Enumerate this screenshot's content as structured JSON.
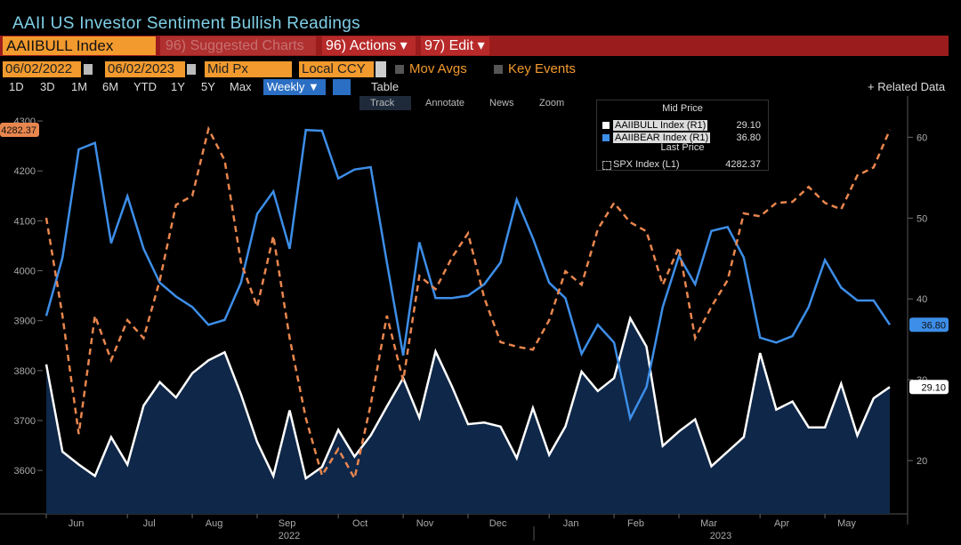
{
  "ui": {
    "security": "AAIIBULL Index",
    "suggested": "96) Suggested Charts",
    "actions": "96) Actions ▾",
    "edit": "97) Edit ▾",
    "start_date": "06/02/2022",
    "end_date": "06/02/2023",
    "field": "Mid Px",
    "currency": "Local CCY",
    "mov_avgs": "Mov Avgs",
    "key_events": "Key Events",
    "ranges": [
      "1D",
      "3D",
      "1M",
      "6M",
      "YTD",
      "1Y",
      "5Y",
      "Max"
    ],
    "frequency": "Weekly ▼",
    "table": "Table",
    "related": "+ Related Data",
    "tools": [
      "Track",
      "Annotate",
      "News",
      "Zoom"
    ],
    "legend_mid": "Mid Price",
    "legend_last": "Last Price"
  },
  "chart_data": {
    "type": "line",
    "title": "AAII US Investor Sentiment Bullish Readings",
    "categories": [
      "Jun",
      null,
      null,
      null,
      null,
      "Jul",
      null,
      null,
      null,
      "Aug",
      null,
      null,
      null,
      "Sep",
      null,
      null,
      null,
      null,
      "Oct",
      null,
      null,
      null,
      "Nov",
      null,
      null,
      null,
      "Dec",
      null,
      null,
      null,
      null,
      "Jan",
      null,
      null,
      null,
      "Feb",
      null,
      null,
      null,
      "Mar",
      null,
      null,
      null,
      null,
      "Apr",
      null,
      null,
      null,
      "May",
      null,
      null,
      null,
      null
    ],
    "years": [
      "2022",
      "2023"
    ],
    "ylim": [
      3513,
      4350
    ],
    "yticks": [
      3600,
      3700,
      3800,
      3900,
      4000,
      4100,
      4200,
      4300
    ],
    "y2lim": [
      13.4,
      65.1
    ],
    "y2ticks": [
      20,
      30,
      40,
      50,
      60
    ],
    "grid": false,
    "series": [
      {
        "name": "AAIIBULL Index (R1)",
        "color": "#ffffff",
        "axis": "y2",
        "area_color": "#0f2748",
        "last_label": "29.10",
        "values": [
          31.9,
          21.1,
          19.5,
          18.1,
          22.9,
          19.5,
          26.8,
          29.7,
          27.8,
          30.8,
          32.4,
          33.4,
          28.2,
          22.3,
          18.1,
          26.2,
          17.8,
          19.2,
          23.8,
          20.5,
          23.1,
          26.7,
          30.2,
          25.3,
          33.5,
          29.2,
          24.5,
          24.7,
          24.2,
          20.3,
          26.5,
          20.7,
          24.2,
          31.0,
          28.6,
          30.2,
          37.6,
          34.1,
          21.8,
          23.6,
          25.1,
          19.3,
          21.1,
          22.9,
          33.3,
          26.3,
          27.3,
          24.1,
          24.1,
          29.5,
          23.1,
          27.7,
          29.1
        ]
      },
      {
        "name": "AAIIBEAR Index (R1)",
        "color": "#3d8ee8",
        "axis": "y2",
        "last_label": "36.80",
        "values": [
          37.9,
          45.1,
          58.5,
          59.3,
          46.9,
          52.7,
          46.2,
          42.0,
          40.3,
          39.0,
          36.8,
          37.4,
          42.0,
          50.5,
          53.3,
          46.2,
          60.9,
          60.8,
          54.9,
          56.0,
          56.3,
          44.5,
          33.0,
          47.0,
          40.1,
          40.1,
          40.4,
          41.8,
          44.5,
          52.3,
          47.5,
          42.0,
          40.1,
          33.2,
          36.8,
          34.6,
          25.2,
          29.1,
          39.0,
          45.3,
          41.8,
          48.4,
          48.9,
          45.1,
          35.2,
          34.6,
          35.4,
          39.0,
          44.8,
          41.4,
          39.8,
          39.8,
          36.8
        ]
      },
      {
        "name": "SPX Index (L1)",
        "color": "#e8864e",
        "axis": "y",
        "dashed": true,
        "last_label": "4282.37",
        "values": [
          4106,
          3910,
          3673,
          3910,
          3821,
          3901,
          3865,
          3981,
          4132,
          4150,
          4284,
          4221,
          4017,
          3928,
          4070,
          3865,
          3705,
          3590,
          3643,
          3584,
          3732,
          3910,
          3780,
          3990,
          3963,
          4026,
          4075,
          3946,
          3857,
          3848,
          3842,
          3901,
          3999,
          3972,
          4083,
          4136,
          4097,
          4079,
          3972,
          4047,
          3865,
          3928,
          3981,
          4115,
          4109,
          4136,
          4138,
          4168,
          4136,
          4123,
          4191,
          4207,
          4282.37
        ]
      }
    ]
  }
}
